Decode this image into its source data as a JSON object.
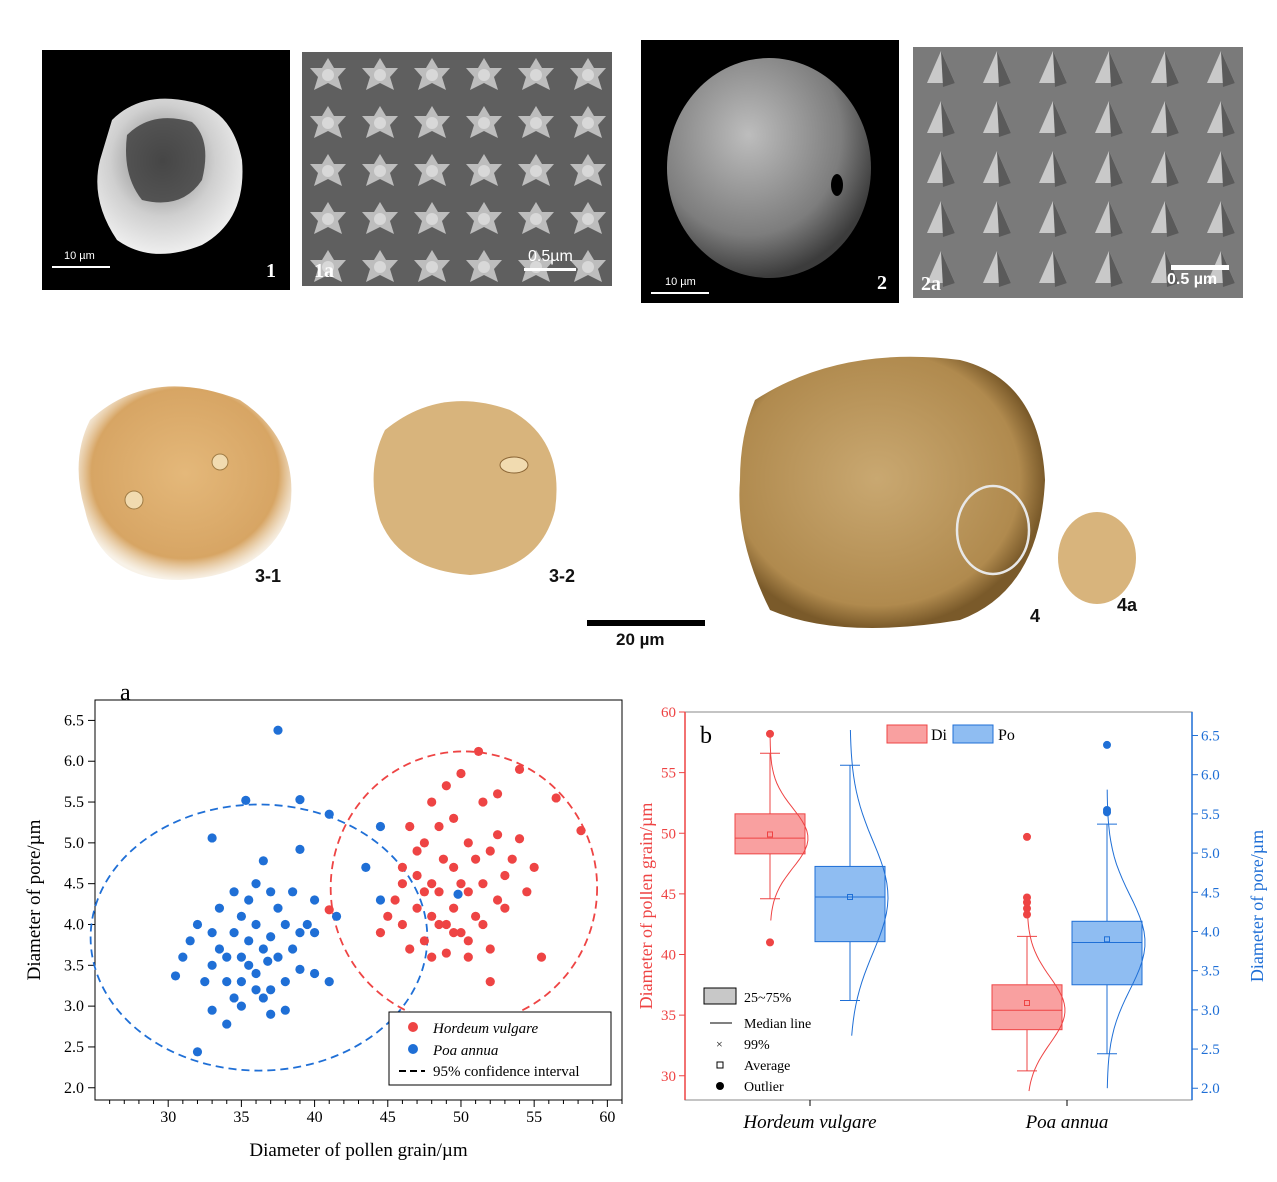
{
  "sem_panels": [
    {
      "id": "1",
      "label": "1",
      "scale": "10 µm"
    },
    {
      "id": "1a",
      "label": "1a",
      "scale": "0.5µm"
    },
    {
      "id": "2",
      "label": "2",
      "scale": "10 µm"
    },
    {
      "id": "2a",
      "label": "2a",
      "scale": "0.5 µm"
    }
  ],
  "lm_panels": [
    {
      "label": "3-1"
    },
    {
      "label": "3-2"
    },
    {
      "label": "4"
    },
    {
      "label": "4a"
    }
  ],
  "lm_scale": "20 µm",
  "chart_data": [
    {
      "type": "scatter",
      "panel_label": "a",
      "xlabel": "Diameter of pollen grain/µm",
      "ylabel": "Diameter of pore/µm",
      "xlim": [
        25,
        61
      ],
      "ylim": [
        1.85,
        6.75
      ],
      "xticks": [
        30,
        35,
        40,
        45,
        50,
        55,
        60
      ],
      "yticks": [
        2.0,
        2.5,
        3.0,
        3.5,
        4.0,
        4.5,
        5.0,
        5.5,
        6.0,
        6.5
      ],
      "legend_position": "bottom-right",
      "legend": [
        "Hordeum vulgare",
        "Poa annua",
        "95% confidence interval"
      ],
      "colors": {
        "Hordeum vulgare": "#ee4444",
        "Poa annua": "#1f6fd6"
      },
      "ellipses": [
        {
          "series": "Hordeum vulgare",
          "cx": 50.2,
          "cy": 4.45,
          "rx": 9.1,
          "ry": 1.67
        },
        {
          "series": "Poa annua",
          "cx": 36.2,
          "cy": 3.84,
          "rx": 11.5,
          "ry": 1.63
        }
      ],
      "series": [
        {
          "name": "Hordeum vulgare",
          "points": [
            [
              41,
              4.18
            ],
            [
              44.5,
              3.9
            ],
            [
              45,
              4.1
            ],
            [
              45.5,
              4.3
            ],
            [
              46,
              4.5
            ],
            [
              46,
              4.0
            ],
            [
              46.5,
              3.7
            ],
            [
              47,
              4.6
            ],
            [
              47,
              4.2
            ],
            [
              47.5,
              5.0
            ],
            [
              47.5,
              3.8
            ],
            [
              48,
              4.5
            ],
            [
              48,
              4.1
            ],
            [
              48,
              3.6
            ],
            [
              48.5,
              5.2
            ],
            [
              48.5,
              4.4
            ],
            [
              48.8,
              4.8
            ],
            [
              49,
              4.0
            ],
            [
              49,
              3.65
            ],
            [
              49.5,
              5.3
            ],
            [
              49.5,
              4.7
            ],
            [
              49.5,
              4.2
            ],
            [
              50,
              4.5
            ],
            [
              50,
              3.9
            ],
            [
              50.5,
              5.0
            ],
            [
              50.5,
              4.4
            ],
            [
              50.5,
              3.6
            ],
            [
              51,
              4.8
            ],
            [
              51,
              4.1
            ],
            [
              51.2,
              6.12
            ],
            [
              51.5,
              5.5
            ],
            [
              51.5,
              4.5
            ],
            [
              52,
              4.9
            ],
            [
              52,
              3.7
            ],
            [
              52.5,
              5.1
            ],
            [
              52.5,
              4.3
            ],
            [
              52,
              3.3
            ],
            [
              53,
              4.6
            ],
            [
              53.5,
              4.8
            ],
            [
              54,
              5.9
            ],
            [
              54,
              5.05
            ],
            [
              54.5,
              4.4
            ],
            [
              55,
              4.7
            ],
            [
              55.5,
              3.6
            ],
            [
              56.5,
              5.55
            ],
            [
              58.2,
              5.15
            ],
            [
              46,
              4.7
            ],
            [
              47,
              4.9
            ],
            [
              48,
              5.5
            ],
            [
              49,
              5.7
            ],
            [
              50,
              5.85
            ],
            [
              47.5,
              4.4
            ],
            [
              48.5,
              4.0
            ],
            [
              49.5,
              3.9
            ],
            [
              50.5,
              3.8
            ],
            [
              51.5,
              4.0
            ],
            [
              53,
              4.2
            ],
            [
              52.5,
              5.6
            ],
            [
              46.5,
              5.2
            ]
          ]
        },
        {
          "name": "Poa annua",
          "points": [
            [
              32,
              2.44
            ],
            [
              30.5,
              3.37
            ],
            [
              31,
              3.6
            ],
            [
              31.5,
              3.8
            ],
            [
              32,
              4.0
            ],
            [
              32.5,
              3.3
            ],
            [
              33,
              5.06
            ],
            [
              33,
              3.5
            ],
            [
              33,
              2.95
            ],
            [
              33.5,
              4.2
            ],
            [
              33.5,
              3.7
            ],
            [
              34,
              3.3
            ],
            [
              34,
              2.78
            ],
            [
              34.5,
              4.4
            ],
            [
              34.5,
              3.9
            ],
            [
              35,
              4.1
            ],
            [
              35,
              3.6
            ],
            [
              35,
              3.0
            ],
            [
              35.3,
              5.52
            ],
            [
              35.5,
              4.3
            ],
            [
              35.5,
              3.8
            ],
            [
              36,
              4.5
            ],
            [
              36,
              4.0
            ],
            [
              36,
              3.4
            ],
            [
              36.5,
              4.78
            ],
            [
              36.5,
              3.7
            ],
            [
              36.5,
              3.1
            ],
            [
              37,
              4.4
            ],
            [
              37,
              3.85
            ],
            [
              37,
              2.9
            ],
            [
              37.5,
              6.38
            ],
            [
              37.5,
              4.2
            ],
            [
              37.5,
              3.6
            ],
            [
              38,
              4.0
            ],
            [
              38,
              3.3
            ],
            [
              38.5,
              4.4
            ],
            [
              38.5,
              3.7
            ],
            [
              39,
              5.53
            ],
            [
              39,
              4.92
            ],
            [
              39,
              3.45
            ],
            [
              39.5,
              4.0
            ],
            [
              40,
              4.3
            ],
            [
              40,
              3.4
            ],
            [
              41,
              5.35
            ],
            [
              41,
              3.3
            ],
            [
              41.5,
              4.1
            ],
            [
              43.5,
              4.7
            ],
            [
              44.5,
              5.2
            ],
            [
              44.5,
              4.3
            ],
            [
              49.8,
              4.37
            ],
            [
              34,
              3.6
            ],
            [
              35,
              3.3
            ],
            [
              36,
              3.2
            ],
            [
              33,
              3.9
            ],
            [
              34.5,
              3.1
            ],
            [
              37,
              3.2
            ],
            [
              38,
              2.95
            ],
            [
              39,
              3.9
            ],
            [
              40,
              3.9
            ],
            [
              35.5,
              3.5
            ],
            [
              36.8,
              3.55
            ]
          ]
        }
      ]
    },
    {
      "type": "box",
      "panel_label": "b",
      "categories": [
        "Hordeum vulgare",
        "Poa annua"
      ],
      "ylabel_left": "Diameter of pollen grain/µm",
      "ylabel_right": "Diameter of pore/µm",
      "ylim_left": [
        28,
        60
      ],
      "ylim_right": [
        1.85,
        6.8
      ],
      "yticks_left": [
        30,
        35,
        40,
        45,
        50,
        55,
        60
      ],
      "yticks_right": [
        2.0,
        2.5,
        3.0,
        3.5,
        4.0,
        4.5,
        5.0,
        5.5,
        6.0,
        6.5
      ],
      "legend_top": [
        "Di",
        "Po"
      ],
      "legend_key": [
        "25~75%",
        "Median line",
        "99%",
        "Average",
        "Outlier"
      ],
      "colors": {
        "Di": "#ee4444",
        "Po": "#1f6fd6",
        "Di_fill": "#f9a0a0",
        "Po_fill": "#8fbdf2"
      },
      "series": [
        {
          "name": "Di",
          "axis": "left",
          "boxes": [
            {
              "q1": 48.3,
              "median": 49.6,
              "q3": 51.6,
              "mean": 49.9,
              "wlo": 44.6,
              "whi": 56.6,
              "outliers": [
                58.2,
                41.0
              ]
            },
            {
              "q1": 33.8,
              "median": 35.4,
              "q3": 37.5,
              "mean": 36.0,
              "wlo": 30.4,
              "whi": 41.5,
              "outliers": [
                49.7,
                44.7,
                44.3,
                43.8,
                43.3
              ]
            }
          ]
        },
        {
          "name": "Po",
          "axis": "right",
          "boxes": [
            {
              "q1": 3.87,
              "median": 4.44,
              "q3": 4.83,
              "mean": 4.44,
              "wlo": 3.12,
              "whi": 6.12,
              "outliers": []
            },
            {
              "q1": 3.32,
              "median": 3.86,
              "q3": 4.13,
              "mean": 3.9,
              "wlo": 2.44,
              "whi": 5.37,
              "outliers": [
                6.38,
                5.55,
                5.52
              ]
            }
          ]
        }
      ]
    }
  ]
}
